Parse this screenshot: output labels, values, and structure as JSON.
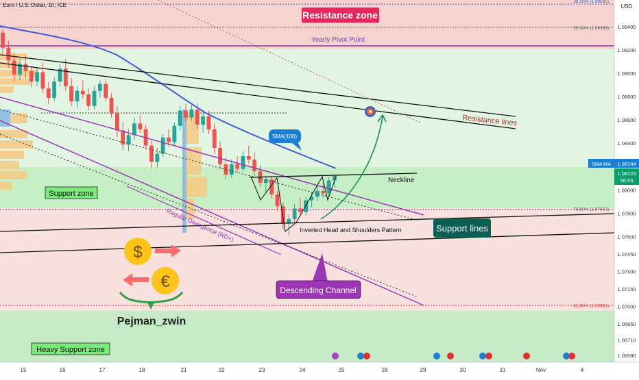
{
  "chart_data": {
    "type": "candlestick",
    "title": "Euro / U.S. Dollar, 1h, ICE",
    "currency": "USD",
    "price_axis": {
      "ticks": [
        "1.09400",
        "1.09200",
        "1.09000",
        "1.08800",
        "1.08600",
        "1.08400",
        "1.08144",
        "1.08123",
        "1.08000",
        "1.07800",
        "1.07600",
        "1.07450",
        "1.07300",
        "1.07150",
        "1.07000",
        "1.06850",
        "1.06710",
        "1.06580"
      ],
      "range": [
        1.0652,
        1.0963
      ]
    },
    "time_axis": {
      "ticks": [
        "15",
        "16",
        "17",
        "18",
        "21",
        "22",
        "23",
        "24",
        "25",
        "28",
        "29",
        "30",
        "31",
        "Nov",
        "4"
      ]
    },
    "last_price": {
      "sma_label": "SMA:MA",
      "sma_value": "1.08144",
      "price": "1.08123",
      "countdown": "56:53"
    },
    "fib_levels": [
      {
        "label": "38.20% (1.09595)",
        "value": 1.09595,
        "color": "#3b5bdb"
      },
      {
        "label": "50.00% (1.09366)",
        "value": 1.09366,
        "color": "#555555"
      },
      {
        "label": "78.60% (1.07810)",
        "value": 1.0781,
        "color": "#555555"
      },
      {
        "label": "61.80% (1.06981)",
        "value": 1.06981,
        "color": "#e03131"
      }
    ],
    "zones": [
      {
        "name": "Resistance zone",
        "from": 1.0918,
        "to": 1.0963,
        "color": "#f4c6c0"
      },
      {
        "name": "Support zone",
        "from": 1.0781,
        "to": 1.0817,
        "color": "#bff0bf"
      },
      {
        "name": "Heavy Support zone",
        "from": 1.0652,
        "to": 1.0694,
        "color": "#bfe8bf"
      }
    ],
    "yearly_pivot": 1.0921,
    "annotations": {
      "resistance_zone": "Resistance zone",
      "yearly_pivot": "Yearly Pivot Point",
      "resistance_lines": "Resistance lines",
      "sma": "SMA(100)",
      "neckline": "Neckline",
      "support_zone": "Support zone",
      "support_lines": "Support lines",
      "ihs": "Inverted Head and Shoulders Pattern",
      "divergence": "Regular Divergence (RD+)",
      "channel": "Descending Channel",
      "heavy_support": "Heavy Support zone",
      "author": "Pejman_zwin"
    },
    "candles": [
      [
        1.0935,
        1.0938,
        1.0915,
        1.0922
      ],
      [
        1.0922,
        1.0928,
        1.0905,
        1.0911
      ],
      [
        1.0911,
        1.0918,
        1.0893,
        1.0899
      ],
      [
        1.0899,
        1.0912,
        1.0894,
        1.0908
      ],
      [
        1.0908,
        1.0915,
        1.0896,
        1.0902
      ],
      [
        1.0902,
        1.0906,
        1.0888,
        1.0893
      ],
      [
        1.0893,
        1.0905,
        1.0889,
        1.0901
      ],
      [
        1.0901,
        1.0909,
        1.0883,
        1.0887
      ],
      [
        1.0887,
        1.0893,
        1.0874,
        1.0879
      ],
      [
        1.0879,
        1.0897,
        1.0876,
        1.0893
      ],
      [
        1.0893,
        1.0908,
        1.0889,
        1.0904
      ],
      [
        1.0904,
        1.0912,
        1.0885,
        1.0889
      ],
      [
        1.0889,
        1.0896,
        1.0872,
        1.0876
      ],
      [
        1.0876,
        1.0889,
        1.0871,
        1.0885
      ],
      [
        1.0885,
        1.0894,
        1.0878,
        1.0882
      ],
      [
        1.0882,
        1.0887,
        1.0868,
        1.0872
      ],
      [
        1.0872,
        1.0889,
        1.0869,
        1.0885
      ],
      [
        1.0885,
        1.0894,
        1.0879,
        1.0891
      ],
      [
        1.0891,
        1.0895,
        1.0876,
        1.0879
      ],
      [
        1.0879,
        1.0883,
        1.0862,
        1.0866
      ],
      [
        1.0866,
        1.0872,
        1.0845,
        1.0851
      ],
      [
        1.0851,
        1.0858,
        1.0834,
        1.0839
      ],
      [
        1.0839,
        1.0852,
        1.0833,
        1.0847
      ],
      [
        1.0847,
        1.0862,
        1.0843,
        1.0857
      ],
      [
        1.0857,
        1.0864,
        1.0849,
        1.0852
      ],
      [
        1.0852,
        1.0856,
        1.0835,
        1.0838
      ],
      [
        1.0838,
        1.0842,
        1.0818,
        1.0824
      ],
      [
        1.0824,
        1.0836,
        1.0819,
        1.0831
      ],
      [
        1.0831,
        1.0848,
        1.0828,
        1.0845
      ],
      [
        1.0845,
        1.0852,
        1.0837,
        1.0841
      ],
      [
        1.0841,
        1.0858,
        1.0838,
        1.0855
      ],
      [
        1.0855,
        1.0872,
        1.0851,
        1.0868
      ],
      [
        1.0868,
        1.0874,
        1.0858,
        1.0862
      ],
      [
        1.0862,
        1.0873,
        1.0859,
        1.0869
      ],
      [
        1.0869,
        1.0874,
        1.0852,
        1.0856
      ],
      [
        1.0856,
        1.0866,
        1.0849,
        1.0863
      ],
      [
        1.0863,
        1.0868,
        1.0848,
        1.0852
      ],
      [
        1.0852,
        1.0857,
        1.0831,
        1.0836
      ],
      [
        1.0836,
        1.0842,
        1.0818,
        1.0822
      ],
      [
        1.0822,
        1.0828,
        1.0809,
        1.0813
      ],
      [
        1.0813,
        1.0826,
        1.081,
        1.0822
      ],
      [
        1.0822,
        1.0829,
        1.0815,
        1.0818
      ],
      [
        1.0818,
        1.0833,
        1.0816,
        1.0829
      ],
      [
        1.0829,
        1.0838,
        1.0822,
        1.0826
      ],
      [
        1.0826,
        1.0832,
        1.0812,
        1.0816
      ],
      [
        1.0816,
        1.0821,
        1.0802,
        1.0806
      ],
      [
        1.0806,
        1.0812,
        1.0797,
        1.0809
      ],
      [
        1.0809,
        1.0812,
        1.0793,
        1.0796
      ],
      [
        1.0796,
        1.0799,
        1.0782,
        1.0786
      ],
      [
        1.0786,
        1.0789,
        1.0766,
        1.0771
      ],
      [
        1.0771,
        1.0779,
        1.0761,
        1.0775
      ],
      [
        1.0775,
        1.0788,
        1.0772,
        1.0784
      ],
      [
        1.0784,
        1.0793,
        1.0779,
        1.0781
      ],
      [
        1.0781,
        1.0794,
        1.0778,
        1.0791
      ],
      [
        1.0791,
        1.0798,
        1.0785,
        1.0794
      ],
      [
        1.0794,
        1.0803,
        1.079,
        1.0799
      ],
      [
        1.0799,
        1.0806,
        1.0793,
        1.0797
      ],
      [
        1.0797,
        1.0811,
        1.0795,
        1.0808
      ],
      [
        1.0808,
        1.0813,
        1.0802,
        1.0812
      ]
    ]
  }
}
